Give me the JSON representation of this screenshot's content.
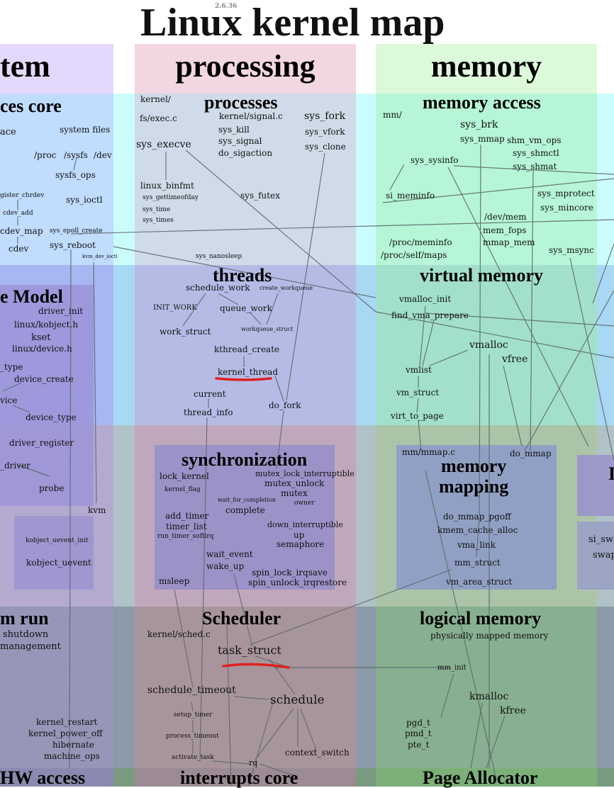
{
  "header": {
    "version": "2.6.36",
    "title": "Linux kernel map"
  },
  "columns": {
    "system": "tem",
    "processing": "processing",
    "memory": "memory"
  },
  "sections": {
    "devices_core": "ces core",
    "processes": "processes",
    "memory_access": "memory access",
    "device_model": "e Model",
    "threads": "threads",
    "virtual_memory": "virtual memory",
    "synchronization": "synchronization",
    "memory_mapping_1": "memory",
    "memory_mapping_2": "mapping",
    "system_run": "m run",
    "scheduler": "Scheduler",
    "logical_memory": "logical memory",
    "hw_access": "HW access",
    "interrupts_core": "interrupts core",
    "page_allocator": "Page Allocator",
    "right_box_1": "I",
    "right_box_2a": "si_swa",
    "right_box_2b": "swap"
  },
  "nodes": {
    "ace": "ace",
    "system_files": "system files",
    "proc": "/proc",
    "sysfs": "/sysfs",
    "dev": "/dev",
    "sysfs_ops": "sysfs_ops",
    "register_chrdev": "gister_chrdev",
    "sys_ioctl": "sys_ioctl",
    "cdev_add": "cdev_add",
    "cdev_map": "cdev_map",
    "sys_epoll_create": "sys_epoll_create",
    "sys_reboot": "sys_reboot",
    "cdev": "cdev",
    "kvm_dev_ioctl": "kvm_dev_ioctl",
    "driver_init": "driver_init",
    "linux_kobject_h": "linux/kobject.h",
    "kset": "kset",
    "linux_device_h": "linux/device.h",
    "type": "_type",
    "device_create": "device_create",
    "vice": "vice",
    "device_type": "device_type",
    "driver_register": "driver_register",
    "e_driver": "_driver",
    "probe": "probe",
    "kvm": "kvm",
    "kobject_uevent_init": "kobject_uevent_init",
    "kobject_uevent": "kobject_uevent",
    "shutdown": "shutdown",
    "management": "management",
    "kernel_restart": "kernel_restart",
    "kernel_power_off": "kernel_power_off",
    "hibernate": "hibernate",
    "machine_ops": "machine_ops",
    "kernel_dir": "kernel/",
    "fs_exec_c": "fs/exec.c",
    "kernel_signal_c": "kernel/signal.c",
    "sys_kill": "sys_kill",
    "sys_signal": "sys_signal",
    "do_sigaction": "do_sigaction",
    "sys_fork": "sys_fork",
    "sys_vfork": "sys_vfork",
    "sys_clone": "sys_clone",
    "sys_execve": "sys_execve",
    "linux_binfmt": "linux_binfmt",
    "sys_gettimeofday": "sys_gettimeofday",
    "sys_time": "sys_time",
    "sys_times": "sys_times",
    "sys_futex": "sys_futex",
    "sys_nanosleep": "sys_nanosleep",
    "schedule_work": "schedule_work",
    "create_workqueue": "create_workqueue",
    "init_work": "INIT_WORK",
    "queue_work": "queue_work",
    "work_struct": "work_struct",
    "workqueue_struct": "workqueue_struct",
    "kthread_create": "kthread_create",
    "kernel_thread": "kernel_thread",
    "current": "current",
    "thread_info": "thread_info",
    "do_fork": "do_fork",
    "lock_kernel": "lock_kernel",
    "mutex_lock_interruptible": "mutex_lock_interruptible",
    "mutex_unlock": "mutex_unlock",
    "mutex": "mutex",
    "kernel_flag": "kernel_flag",
    "wait_for_completion": "wait_for_completion",
    "owner": "owner",
    "complete": "complete",
    "add_timer": "add_timer",
    "timer_list": "timer_list",
    "run_timer_softirq": "run_timer_softirq",
    "down_interruptible": "down_interruptible",
    "up": "up",
    "semaphore": "semaphore",
    "wait_event": "wait_event",
    "wake_up": "wake_up",
    "spin_lock_irqsave": "spin_lock_irqsave",
    "spin_unlock_irqrestore": "spin_unlock_irqrestore",
    "msleep": "msleep",
    "kernel_sched_c": "kernel/sched.c",
    "task_struct": "task_struct",
    "schedule_timeout": "schedule_timeout",
    "schedule": "schedule",
    "setup_timer": "setup_timer",
    "process_timeout": "process_timeout",
    "activate_task": "activate_task",
    "rq": "rq",
    "context_switch": "context_switch",
    "mm_dir": "mm/",
    "sys_brk": "sys_brk",
    "sys_mmap": "sys_mmap",
    "shm_vm_ops": "shm_vm_ops",
    "sys_shmctl": "sys_shmctl",
    "sys_shmat": "sys_shmat",
    "sys_sysinfo": "sys_sysinfo",
    "si_meminfo": "si_meminfo",
    "sys_mprotect": "sys_mprotect",
    "sys_mincore": "sys_mincore",
    "dev_mem": "/dev/mem",
    "mem_fops": "mem_fops",
    "mmap_mem": "mmap_mem",
    "proc_meminfo": "/proc/meminfo",
    "proc_self_maps": "/proc/self/maps",
    "sys_msync": "sys_msync",
    "vmalloc_init": "vmalloc_init",
    "find_vma_prepare": "find_vma_prepare",
    "vmalloc": "vmalloc",
    "vmlist": "vmlist",
    "vfree": "vfree",
    "vm_struct": "vm_struct",
    "virt_to_page": "virt_to_page",
    "mm_mmap_c": "mm/mmap.c",
    "do_mmap": "do_mmap",
    "do_mmap_pgoff": "do_mmap_pgoff",
    "kmem_cache_alloc": "kmem_cache_alloc",
    "vma_link": "vma_link",
    "mm_struct": "mm_struct",
    "vm_area_struct": "vm_area_struct",
    "physically_mapped_memory": "physically mapped memory",
    "mm_init": "mm_init",
    "kmalloc": "kmalloc",
    "kfree": "kfree",
    "pgd_t": "pgd_t",
    "pmd_t": "pmd_t",
    "pte_t": "pte_t"
  },
  "colors": {
    "col_system": "#e2d6fb",
    "col_processing": "#f2d6e2",
    "col_memory": "#dcf8dc",
    "row_user": "#c8e0ff",
    "row_virtual": "#a8b8ee",
    "row_bridges": "#b4a8cc",
    "row_functional": "#9898b8",
    "row_hw": "#8aa088",
    "annotation_underline": "#e02020"
  }
}
